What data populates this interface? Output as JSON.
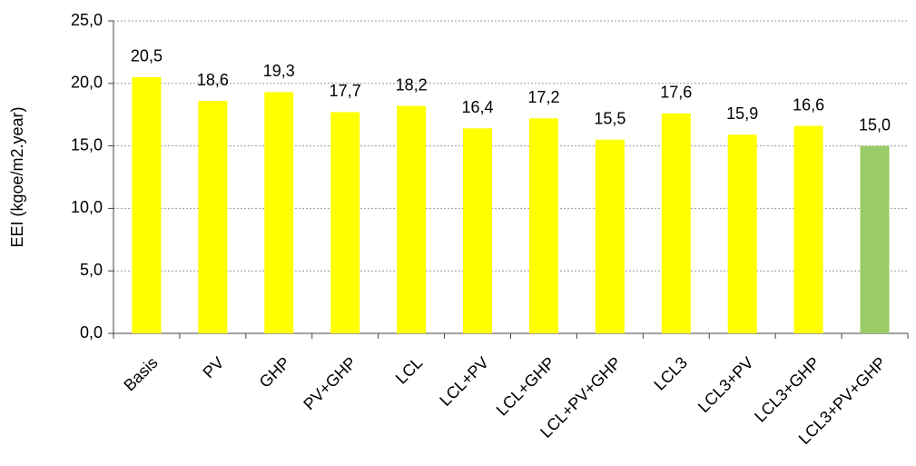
{
  "chart_data": {
    "type": "bar",
    "y_label": "EEI (kgoe/m2.year)",
    "categories": [
      "Basis",
      "PV",
      "GHP",
      "PV+GHP",
      "LCL",
      "LCL+PV",
      "LCL+GHP",
      "LCL+PV+GHP",
      "LCL3",
      "LCL3+PV",
      "LCL3+GHP",
      "LCL3+PV+GHP"
    ],
    "values": [
      20.5,
      18.6,
      19.3,
      17.7,
      18.2,
      16.4,
      17.2,
      15.5,
      17.6,
      15.9,
      16.6,
      15.0
    ],
    "value_labels": [
      "20,5",
      "18,6",
      "19,3",
      "17,7",
      "18,2",
      "16,4",
      "17,2",
      "15,5",
      "17,6",
      "15,9",
      "16,6",
      "15,0"
    ],
    "colors": [
      "#ffff00",
      "#ffff00",
      "#ffff00",
      "#ffff00",
      "#ffff00",
      "#ffff00",
      "#ffff00",
      "#ffff00",
      "#ffff00",
      "#ffff00",
      "#ffff00",
      "#99cc66"
    ],
    "ylim": [
      0,
      25
    ],
    "yticks": [
      {
        "value": 0,
        "label": "0,0"
      },
      {
        "value": 5,
        "label": "5,0"
      },
      {
        "value": 10,
        "label": "10,0"
      },
      {
        "value": 15,
        "label": "15,0"
      },
      {
        "value": 20,
        "label": "20,0"
      },
      {
        "value": 25,
        "label": "25,0"
      }
    ],
    "grid": true
  }
}
